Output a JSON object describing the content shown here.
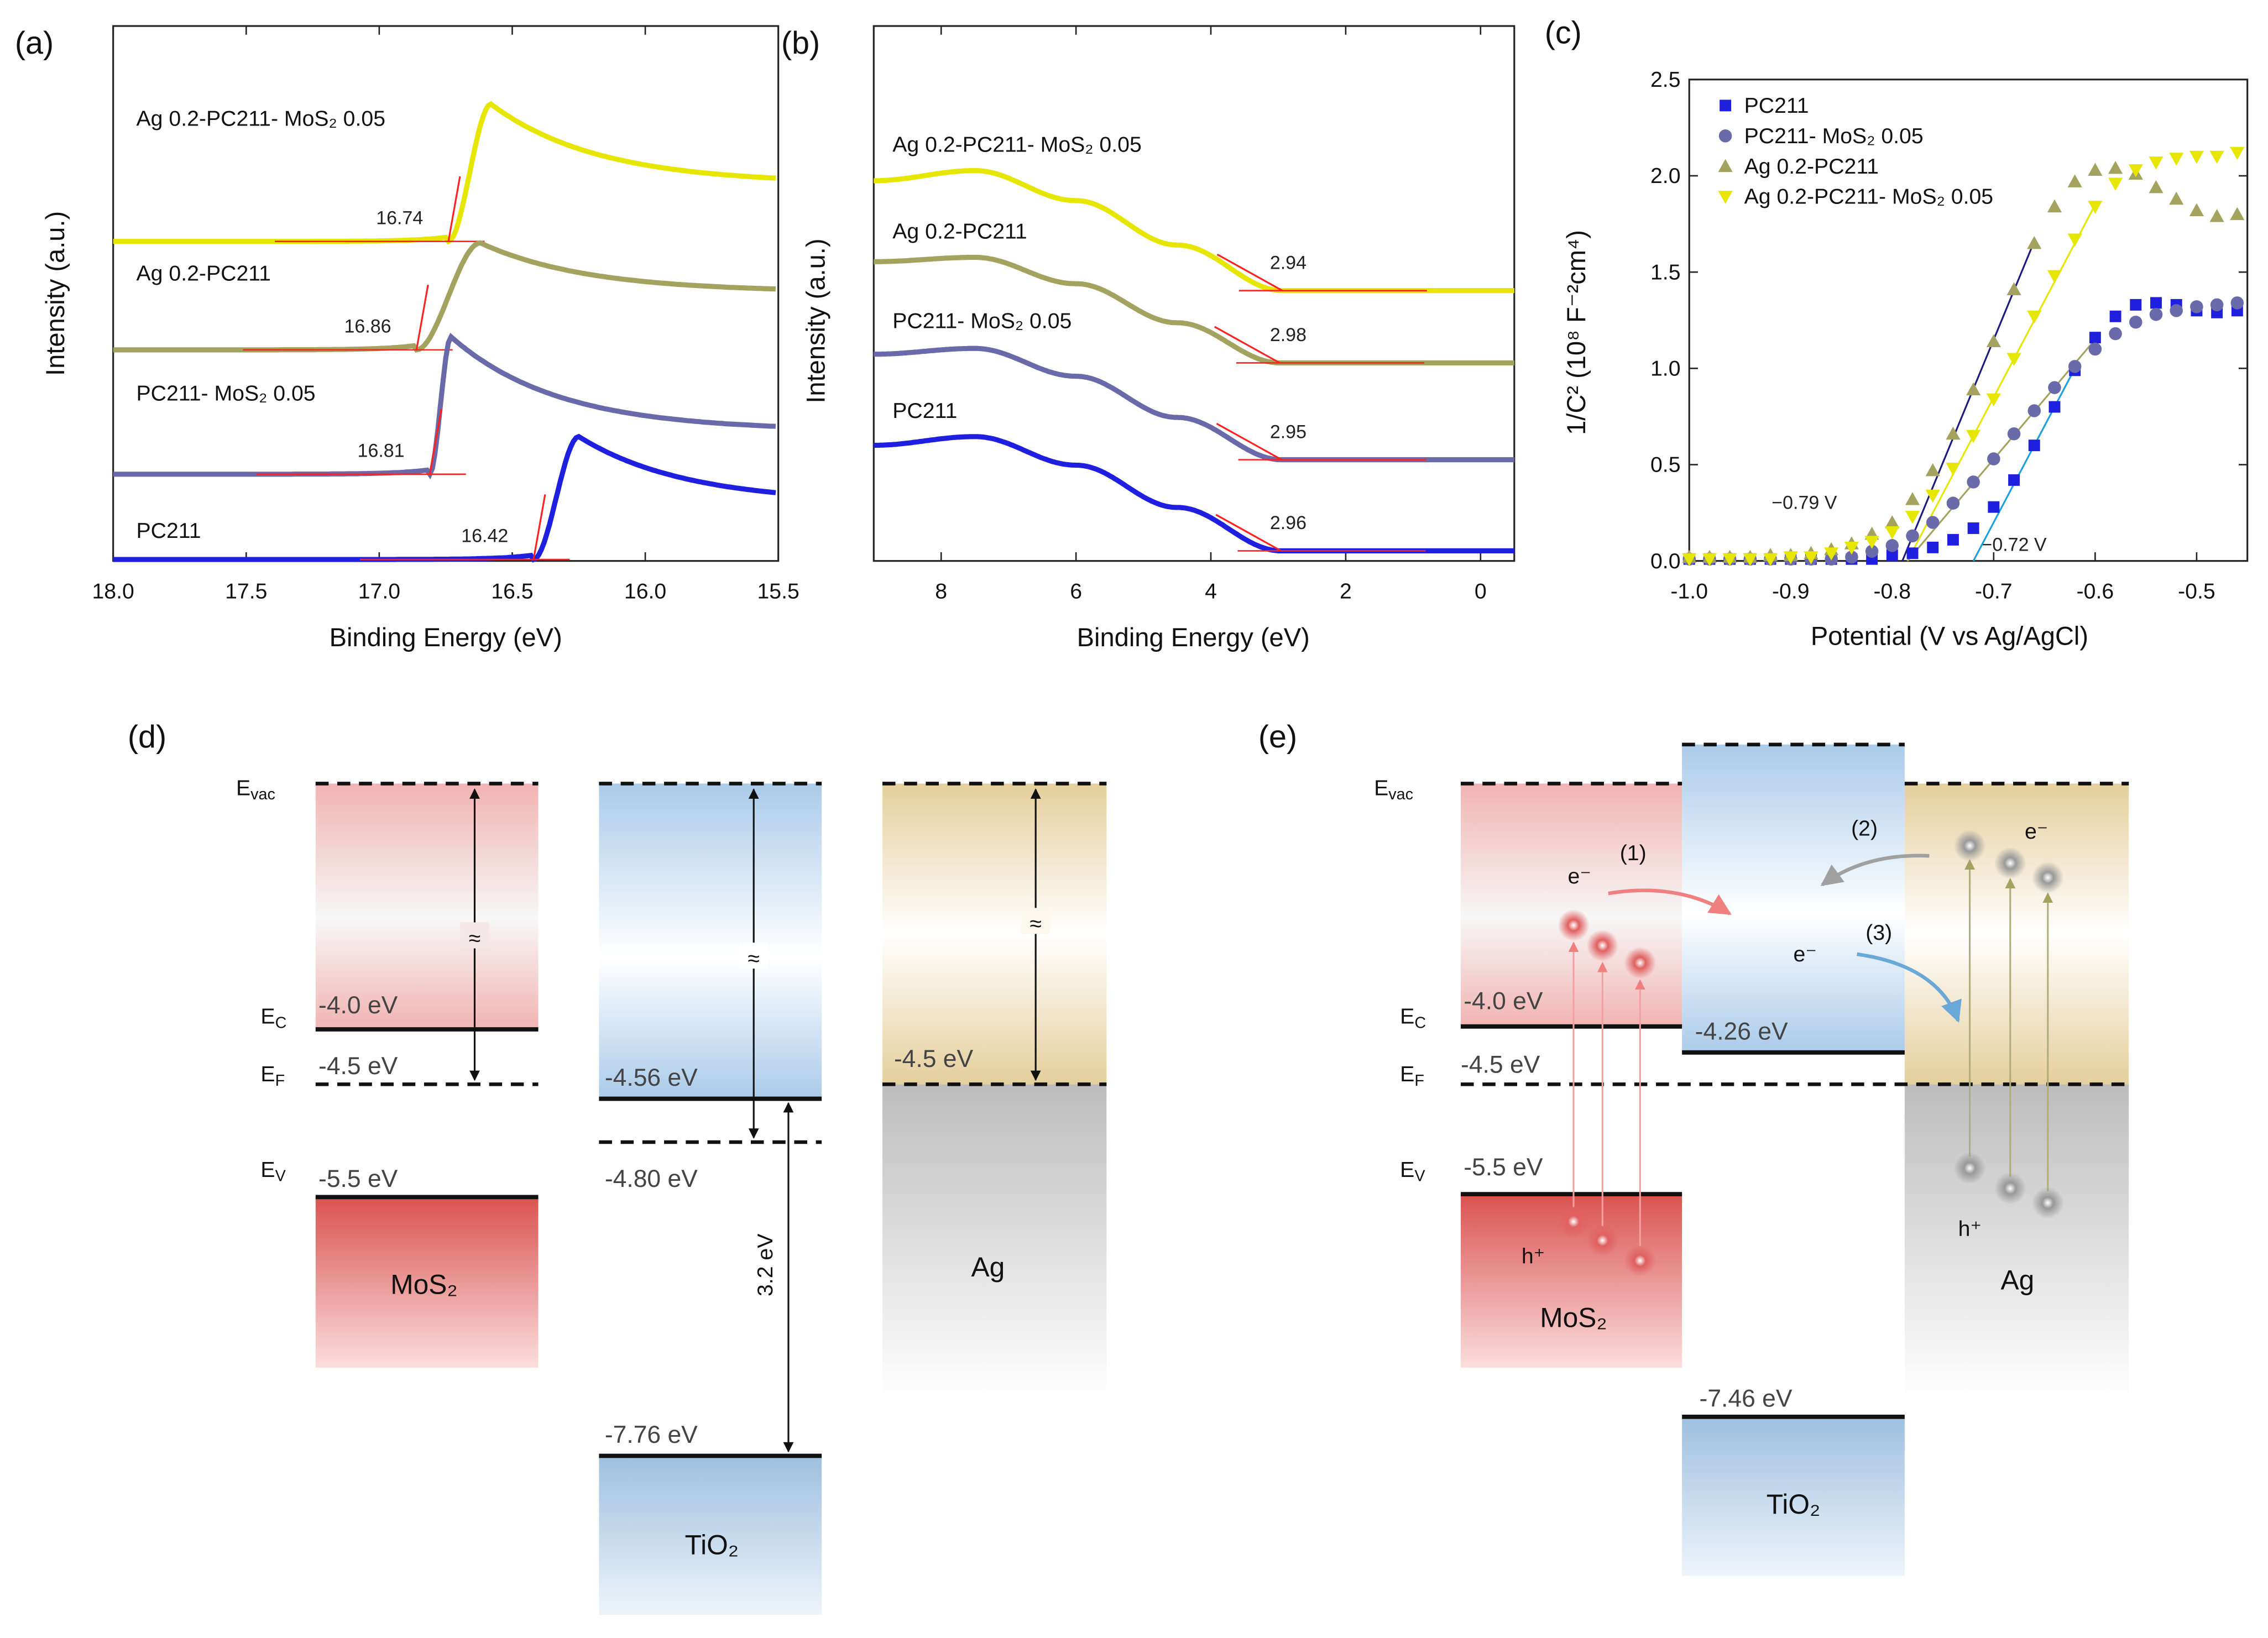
{
  "panel_labels": {
    "a": "(a)",
    "b": "(b)",
    "c": "(c)",
    "d": "(d)",
    "e": "(e)"
  },
  "colors": {
    "yellow": "#e6e600",
    "olive": "#a3a25e",
    "purple": "#6a6aab",
    "blue": "#1f1fe0",
    "fit": "#ff2020"
  },
  "chart_data": [
    {
      "panel": "a",
      "type": "line",
      "xlabel": "Binding Energy (eV)",
      "ylabel": "Intensity (a.u.)",
      "xlim": [
        18.0,
        15.5
      ],
      "xticks": [
        "18.0",
        "17.5",
        "17.0",
        "16.5",
        "16.0",
        "15.5"
      ],
      "series": [
        {
          "name": "Ag 0.2-PC211- MoS₂ 0.05",
          "color": "#e6e600",
          "onset": 16.74,
          "onset_label": "16.74",
          "peak_x": 16.58
        },
        {
          "name": "Ag 0.2-PC211",
          "color": "#a3a25e",
          "onset": 16.86,
          "onset_label": "16.86",
          "peak_x": 16.62
        },
        {
          "name": "PC211- MoS₂ 0.05",
          "color": "#6a6aab",
          "onset": 16.81,
          "onset_label": "16.81",
          "peak_x": 16.73
        },
        {
          "name": "PC211",
          "color": "#1f1fe0",
          "onset": 16.42,
          "onset_label": "16.42",
          "peak_x": 16.25
        }
      ]
    },
    {
      "panel": "b",
      "type": "line",
      "xlabel": "Binding Energy (eV)",
      "ylabel": "Intensity (a.u.)",
      "xlim": [
        9,
        -0.5
      ],
      "xticks": [
        "8",
        "6",
        "4",
        "2",
        "0"
      ],
      "series": [
        {
          "name": "Ag 0.2-PC211- MoS₂ 0.05",
          "color": "#e6e600",
          "onset": 2.94,
          "onset_label": "2.94"
        },
        {
          "name": "Ag 0.2-PC211",
          "color": "#a3a25e",
          "onset": 2.98,
          "onset_label": "2.98"
        },
        {
          "name": "PC211- MoS₂ 0.05",
          "color": "#6a6aab",
          "onset": 2.95,
          "onset_label": "2.95"
        },
        {
          "name": "PC211",
          "color": "#1f1fe0",
          "onset": 2.96,
          "onset_label": "2.96"
        }
      ]
    },
    {
      "panel": "c",
      "type": "scatter",
      "xlabel": "Potential (V vs Ag/AgCl)",
      "ylabel": "1/C² (10⁸ F⁻²cm⁴)",
      "xlim": [
        -1.0,
        -0.45
      ],
      "ylim": [
        0,
        2.5
      ],
      "xticks": [
        "-1.0",
        "-0.9",
        "-0.8",
        "-0.7",
        "-0.6",
        "-0.5"
      ],
      "yticks": [
        "0.0",
        "0.5",
        "1.0",
        "1.5",
        "2.0",
        "2.5"
      ],
      "legend": "top-left",
      "x": [
        -1.0,
        -0.98,
        -0.96,
        -0.94,
        -0.92,
        -0.9,
        -0.88,
        -0.86,
        -0.84,
        -0.82,
        -0.8,
        -0.78,
        -0.76,
        -0.74,
        -0.72,
        -0.7,
        -0.68,
        -0.66,
        -0.64,
        -0.62,
        -0.6,
        -0.58,
        -0.56,
        -0.54,
        -0.52,
        -0.5,
        -0.48,
        -0.46
      ],
      "series": [
        {
          "name": "PC211",
          "marker": "square",
          "color": "#1f1fe0",
          "values": [
            0.01,
            0.01,
            0.01,
            0.01,
            0.01,
            0.01,
            0.01,
            0.01,
            0.01,
            0.01,
            0.03,
            0.04,
            0.07,
            0.11,
            0.17,
            0.28,
            0.42,
            0.6,
            0.8,
            0.99,
            1.16,
            1.27,
            1.33,
            1.34,
            1.33,
            1.3,
            1.29,
            1.3
          ]
        },
        {
          "name": "PC211- MoS₂ 0.05",
          "marker": "circle",
          "color": "#6a6aab",
          "values": [
            0.01,
            0.01,
            0.01,
            0.01,
            0.01,
            0.01,
            0.01,
            0.01,
            0.02,
            0.05,
            0.08,
            0.13,
            0.2,
            0.3,
            0.41,
            0.53,
            0.66,
            0.78,
            0.9,
            1.01,
            1.1,
            1.18,
            1.24,
            1.28,
            1.3,
            1.32,
            1.33,
            1.34
          ]
        },
        {
          "name": "Ag 0.2-PC211",
          "marker": "triangle-up",
          "color": "#a3a25e",
          "values": [
            0.02,
            0.02,
            0.02,
            0.02,
            0.03,
            0.03,
            0.04,
            0.06,
            0.09,
            0.14,
            0.2,
            0.32,
            0.47,
            0.66,
            0.89,
            1.14,
            1.41,
            1.65,
            1.84,
            1.97,
            2.03,
            2.04,
            2.01,
            1.94,
            1.88,
            1.82,
            1.79,
            1.8
          ]
        },
        {
          "name": "Ag 0.2-PC211- MoS₂ 0.05",
          "marker": "triangle-down",
          "color": "#e6e600",
          "values": [
            0.01,
            0.01,
            0.01,
            0.01,
            0.01,
            0.02,
            0.02,
            0.04,
            0.07,
            0.1,
            0.15,
            0.23,
            0.34,
            0.48,
            0.65,
            0.84,
            1.05,
            1.27,
            1.48,
            1.67,
            1.84,
            1.96,
            2.03,
            2.07,
            2.09,
            2.1,
            2.1,
            2.12
          ]
        }
      ],
      "fits": [
        {
          "color": "#1a1a80",
          "from": [
            -0.79,
            0
          ],
          "to": [
            -0.66,
            1.66
          ]
        },
        {
          "color": "#e6e600",
          "from": [
            -0.785,
            0
          ],
          "to": [
            -0.6,
            1.85
          ]
        },
        {
          "color": "#a3a25e",
          "from": [
            -0.785,
            0
          ],
          "to": [
            -0.6,
            1.15
          ]
        },
        {
          "color": "#1aa0e0",
          "from": [
            -0.72,
            0
          ],
          "to": [
            -0.62,
            1.0
          ]
        }
      ],
      "annotations": [
        "−0.79 V",
        "−0.72 V"
      ]
    }
  ],
  "diagram_d": {
    "levels": {
      "evac": {
        "main": "E",
        "sub": "vac"
      },
      "ec": {
        "main": "E",
        "sub": "C"
      },
      "ef": {
        "main": "E",
        "sub": "F"
      },
      "ev": {
        "main": "E",
        "sub": "V"
      }
    },
    "mos2": {
      "name": "MoS₂",
      "ec": "-4.0 eV",
      "ef": "-4.5 eV",
      "ev": "-5.5 eV"
    },
    "tio2": {
      "name": "TiO₂",
      "cb": "-4.56 eV",
      "ef": "-4.80 eV",
      "vb": "-7.76 eV",
      "gap": "3.2 eV"
    },
    "ag": {
      "name": "Ag",
      "ef": "-4.5 eV"
    },
    "approx": "≈"
  },
  "diagram_e": {
    "levels": {
      "evac": {
        "main": "E",
        "sub": "vac"
      },
      "ec": {
        "main": "E",
        "sub": "C"
      },
      "ef": {
        "main": "E",
        "sub": "F"
      },
      "ev": {
        "main": "E",
        "sub": "V"
      }
    },
    "mos2": {
      "name": "MoS₂",
      "ec": "-4.0 eV",
      "ef": "-4.5 eV",
      "ev": "-5.5 eV"
    },
    "tio2": {
      "name": "TiO₂",
      "cb": "-4.26 eV",
      "vb": "-7.46 eV"
    },
    "ag": {
      "name": "Ag"
    },
    "electron": "e⁻",
    "hole": "h⁺",
    "steps": [
      "(1)",
      "(2)",
      "(3)"
    ]
  }
}
